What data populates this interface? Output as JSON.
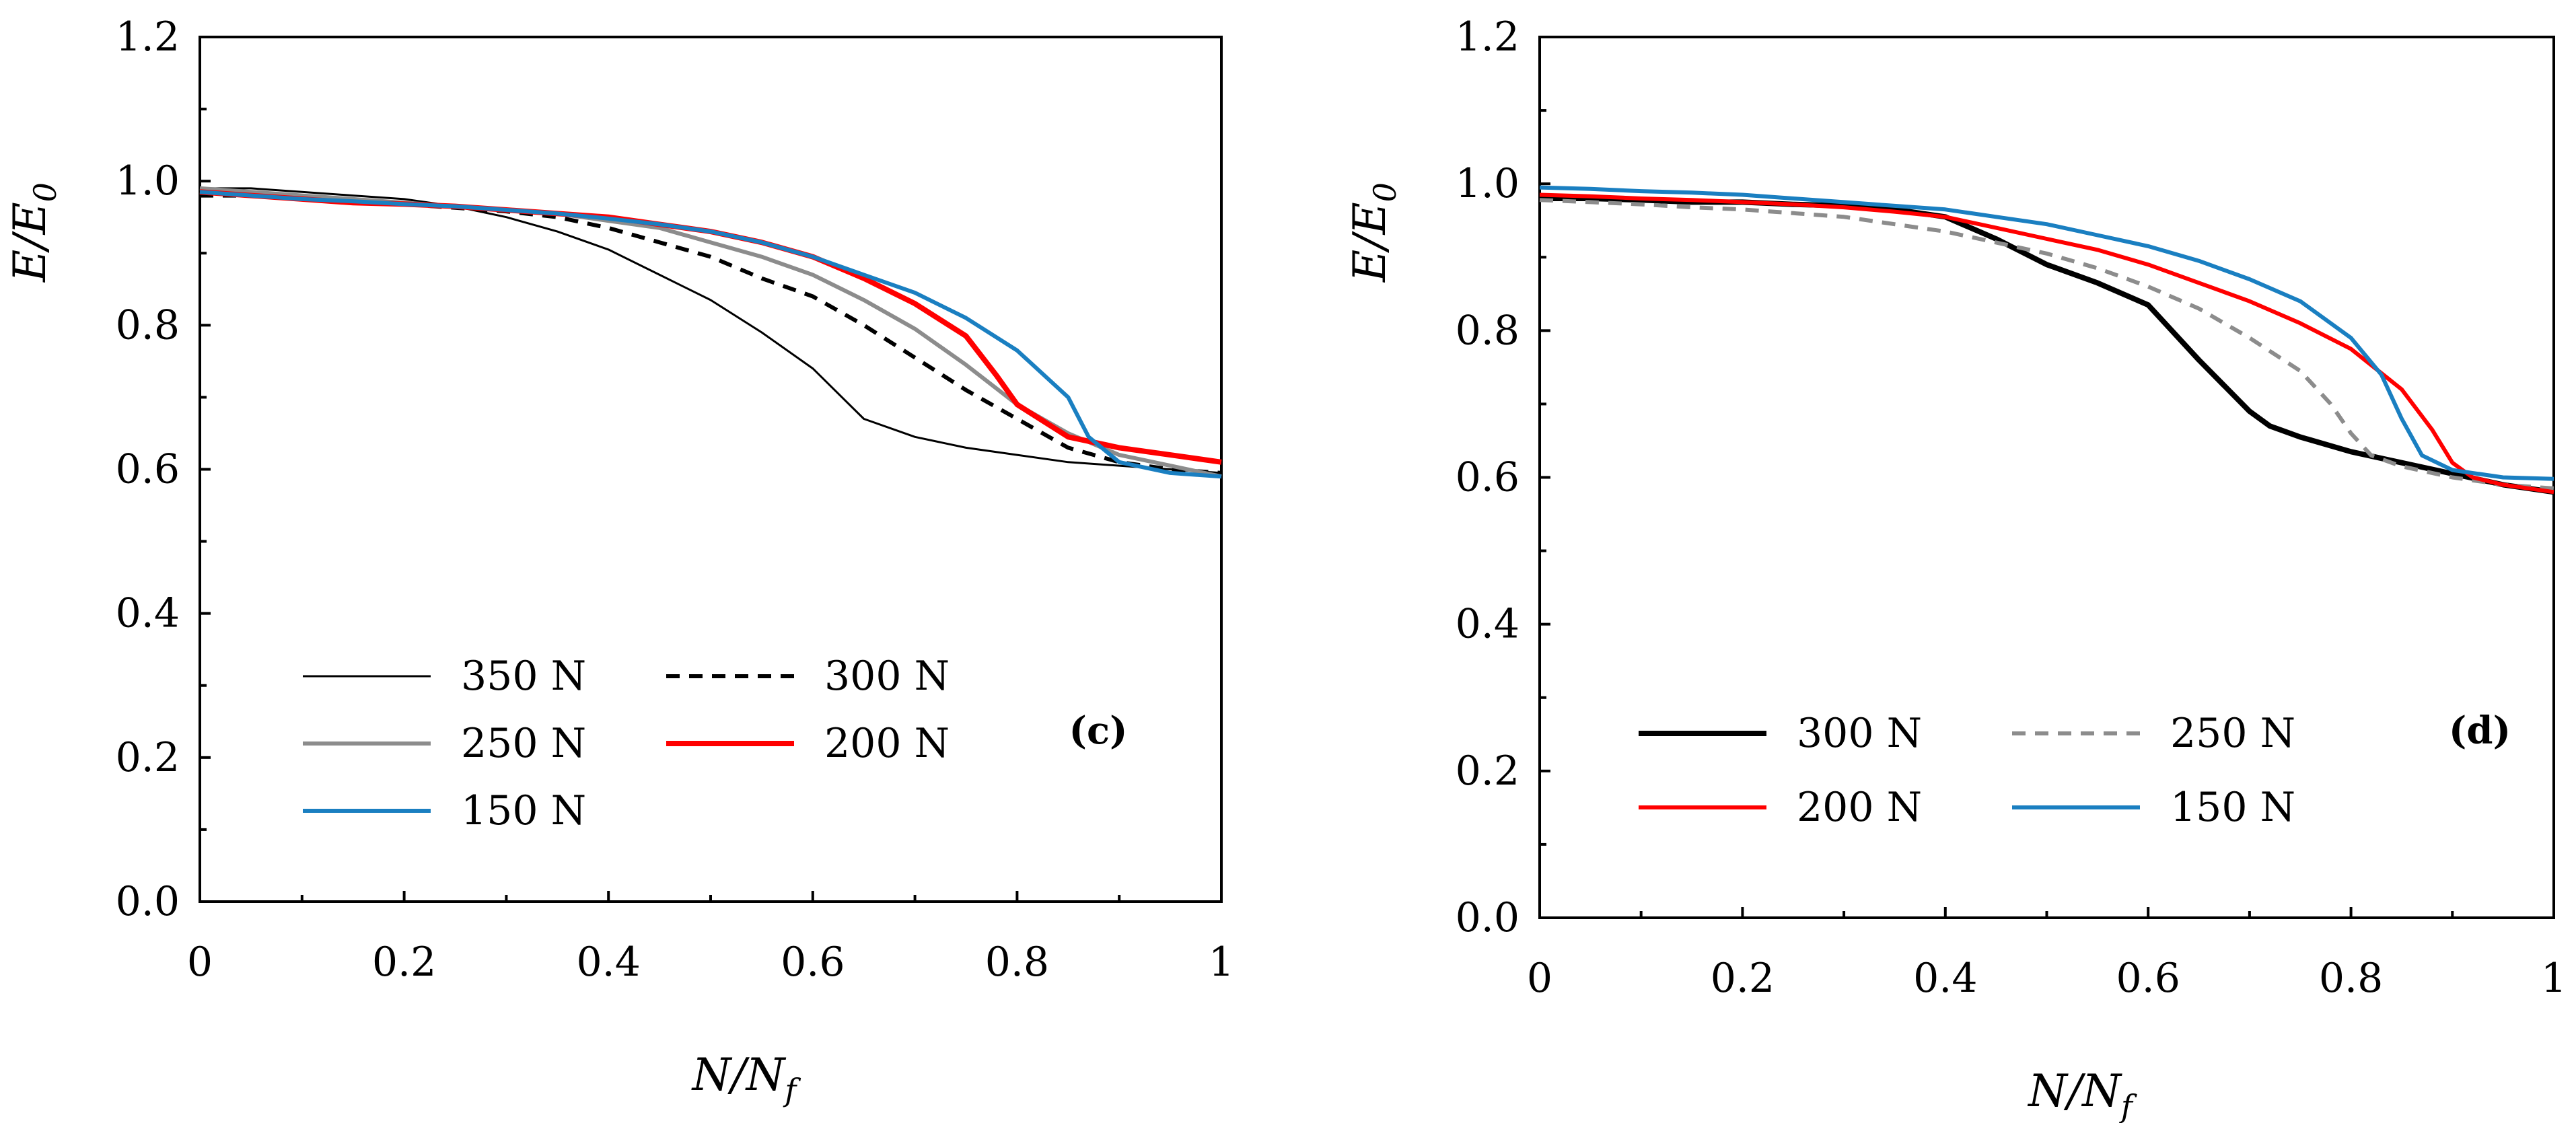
{
  "chart_data": [
    {
      "type": "line",
      "panel_label": "(c)",
      "xlabel": "N/N",
      "xlabel_sub": "f",
      "ylabel": "E/E",
      "ylabel_sub": "0",
      "xlim": [
        0,
        1
      ],
      "ylim": [
        0,
        1.2
      ],
      "x_ticks": [
        "0",
        "0.2",
        "0.4",
        "0.6",
        "0.8",
        "1"
      ],
      "y_ticks": [
        "0.0",
        "0.2",
        "0.4",
        "0.6",
        "0.8",
        "1.0",
        "1.2"
      ],
      "grid": false,
      "legend_position": "bottom-left",
      "series": [
        {
          "name": "350 N",
          "color": "#000000",
          "style": "solid-thin",
          "x": [
            0,
            0.05,
            0.1,
            0.15,
            0.2,
            0.25,
            0.3,
            0.35,
            0.4,
            0.45,
            0.5,
            0.55,
            0.6,
            0.65,
            0.7,
            0.75,
            0.8,
            0.85,
            0.9,
            0.95,
            1.0
          ],
          "y": [
            0.99,
            0.99,
            0.985,
            0.98,
            0.975,
            0.965,
            0.95,
            0.93,
            0.905,
            0.87,
            0.835,
            0.79,
            0.74,
            0.67,
            0.645,
            0.63,
            0.62,
            0.61,
            0.605,
            0.6,
            0.595
          ]
        },
        {
          "name": "300 N",
          "color": "#000000",
          "style": "dashed",
          "x": [
            0,
            0.05,
            0.1,
            0.15,
            0.2,
            0.25,
            0.3,
            0.35,
            0.4,
            0.45,
            0.5,
            0.55,
            0.6,
            0.65,
            0.7,
            0.75,
            0.8,
            0.85,
            0.9,
            0.95,
            1.0
          ],
          "y": [
            0.98,
            0.98,
            0.975,
            0.972,
            0.968,
            0.963,
            0.958,
            0.95,
            0.935,
            0.915,
            0.895,
            0.865,
            0.84,
            0.8,
            0.755,
            0.71,
            0.67,
            0.63,
            0.61,
            0.6,
            0.595
          ]
        },
        {
          "name": "250 N",
          "color": "#8c8c8c",
          "style": "solid",
          "x": [
            0,
            0.05,
            0.1,
            0.15,
            0.2,
            0.25,
            0.3,
            0.35,
            0.4,
            0.45,
            0.5,
            0.55,
            0.6,
            0.65,
            0.7,
            0.75,
            0.8,
            0.85,
            0.9,
            0.95,
            1.0
          ],
          "y": [
            0.99,
            0.985,
            0.98,
            0.975,
            0.97,
            0.965,
            0.96,
            0.955,
            0.945,
            0.935,
            0.915,
            0.895,
            0.87,
            0.835,
            0.795,
            0.745,
            0.69,
            0.65,
            0.62,
            0.605,
            0.59
          ]
        },
        {
          "name": "200 N",
          "color": "#ff0000",
          "style": "solid-thick",
          "x": [
            0,
            0.05,
            0.1,
            0.15,
            0.2,
            0.25,
            0.3,
            0.35,
            0.4,
            0.45,
            0.5,
            0.55,
            0.6,
            0.65,
            0.7,
            0.75,
            0.78,
            0.8,
            0.85,
            0.9,
            0.95,
            1.0
          ],
          "y": [
            0.985,
            0.98,
            0.975,
            0.97,
            0.968,
            0.965,
            0.96,
            0.955,
            0.95,
            0.94,
            0.93,
            0.915,
            0.895,
            0.865,
            0.83,
            0.785,
            0.73,
            0.69,
            0.645,
            0.63,
            0.62,
            0.61
          ]
        },
        {
          "name": "150 N",
          "color": "#1a7fc1",
          "style": "solid",
          "x": [
            0,
            0.05,
            0.1,
            0.15,
            0.2,
            0.25,
            0.3,
            0.35,
            0.4,
            0.45,
            0.5,
            0.55,
            0.6,
            0.65,
            0.7,
            0.75,
            0.8,
            0.85,
            0.87,
            0.9,
            0.95,
            1.0
          ],
          "y": [
            0.985,
            0.98,
            0.975,
            0.972,
            0.968,
            0.965,
            0.96,
            0.955,
            0.948,
            0.94,
            0.93,
            0.915,
            0.895,
            0.87,
            0.845,
            0.81,
            0.765,
            0.7,
            0.645,
            0.61,
            0.595,
            0.59
          ]
        }
      ]
    },
    {
      "type": "line",
      "panel_label": "(d)",
      "xlabel": "N/N",
      "xlabel_sub": "f",
      "ylabel": "E/E",
      "ylabel_sub": "0",
      "xlim": [
        0,
        1
      ],
      "ylim": [
        0,
        1.2
      ],
      "x_ticks": [
        "0",
        "0.2",
        "0.4",
        "0.6",
        "0.8",
        "1"
      ],
      "y_ticks": [
        "0.0",
        "0.2",
        "0.4",
        "0.6",
        "0.8",
        "1.0",
        "1.2"
      ],
      "grid": false,
      "legend_position": "bottom-center",
      "series": [
        {
          "name": "300 N",
          "color": "#000000",
          "style": "solid-thick",
          "x": [
            0,
            0.05,
            0.1,
            0.15,
            0.2,
            0.25,
            0.3,
            0.35,
            0.4,
            0.45,
            0.5,
            0.55,
            0.6,
            0.65,
            0.7,
            0.72,
            0.75,
            0.8,
            0.85,
            0.9,
            0.95,
            1.0
          ],
          "y": [
            0.98,
            0.98,
            0.978,
            0.975,
            0.975,
            0.972,
            0.97,
            0.965,
            0.955,
            0.925,
            0.89,
            0.865,
            0.835,
            0.76,
            0.69,
            0.67,
            0.655,
            0.635,
            0.62,
            0.605,
            0.59,
            0.58
          ]
        },
        {
          "name": "250 N",
          "color": "#8c8c8c",
          "style": "dashed",
          "x": [
            0,
            0.05,
            0.1,
            0.15,
            0.2,
            0.25,
            0.3,
            0.35,
            0.4,
            0.45,
            0.5,
            0.55,
            0.6,
            0.65,
            0.7,
            0.75,
            0.78,
            0.8,
            0.82,
            0.85,
            0.9,
            0.95,
            1.0
          ],
          "y": [
            0.978,
            0.975,
            0.972,
            0.968,
            0.965,
            0.96,
            0.955,
            0.945,
            0.935,
            0.92,
            0.905,
            0.885,
            0.86,
            0.83,
            0.79,
            0.745,
            0.7,
            0.66,
            0.63,
            0.615,
            0.6,
            0.59,
            0.585
          ]
        },
        {
          "name": "200 N",
          "color": "#ff0000",
          "style": "solid",
          "x": [
            0,
            0.05,
            0.1,
            0.15,
            0.2,
            0.25,
            0.3,
            0.35,
            0.4,
            0.45,
            0.5,
            0.55,
            0.6,
            0.65,
            0.7,
            0.75,
            0.8,
            0.85,
            0.88,
            0.9,
            0.92,
            0.95,
            1.0
          ],
          "y": [
            0.985,
            0.983,
            0.98,
            0.978,
            0.975,
            0.972,
            0.968,
            0.962,
            0.955,
            0.94,
            0.925,
            0.91,
            0.89,
            0.865,
            0.84,
            0.81,
            0.775,
            0.72,
            0.665,
            0.62,
            0.6,
            0.59,
            0.58
          ]
        },
        {
          "name": "150 N",
          "color": "#1a7fc1",
          "style": "solid",
          "x": [
            0,
            0.05,
            0.1,
            0.15,
            0.2,
            0.25,
            0.3,
            0.35,
            0.4,
            0.45,
            0.5,
            0.55,
            0.6,
            0.65,
            0.7,
            0.75,
            0.8,
            0.83,
            0.85,
            0.87,
            0.9,
            0.95,
            1.0
          ],
          "y": [
            0.995,
            0.993,
            0.99,
            0.988,
            0.985,
            0.98,
            0.975,
            0.97,
            0.965,
            0.955,
            0.945,
            0.93,
            0.915,
            0.895,
            0.87,
            0.84,
            0.79,
            0.74,
            0.68,
            0.63,
            0.61,
            0.6,
            0.598
          ]
        }
      ]
    }
  ]
}
